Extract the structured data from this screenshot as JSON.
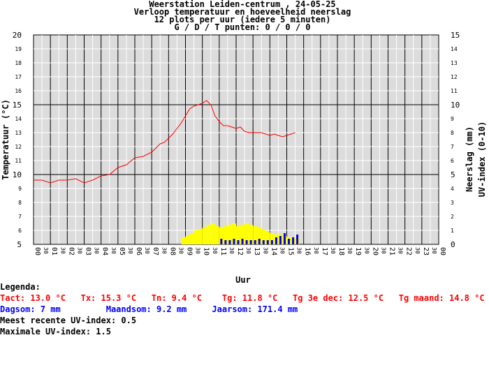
{
  "header": {
    "line1": "Weerstation Leiden-centrum , 24-05-25",
    "line2": "Verloop temperatuur en hoeveelheid neerslag",
    "line3": "12 plots per uur (iedere 5 minuten)",
    "line4": "G / D / T punten: 0 / 0 / 0"
  },
  "axes": {
    "y_left_label": "Temperatuur (°C)",
    "y_right_label1": "Neerslag (mm)",
    "y_right_label2": "UV-index (0-10)",
    "x_label": "Uur",
    "y_left_range": [
      5,
      20
    ],
    "y_right_range": [
      0,
      15
    ],
    "x_range_hours": [
      0,
      24
    ]
  },
  "legend": {
    "title": "Legenda:",
    "line_red": "Tact: 13.0 °C   Tx: 15.3 °C   Tn: 9.4 °C    Tg: 11.8 °C   Tg 3e dec: 12.5 °C   Tg maand: 14.8 °C",
    "line_blue": "Dagsom: 7 mm         Maandsom: 9.2 mm     Jaarsom: 171.4 mm",
    "line_uv_recent": "Meest recente UV-index: 0.5",
    "line_uv_max": "Maximale UV-index: 1.5"
  },
  "colors": {
    "temperature": "#ff0000",
    "rain": "#0000ff",
    "uv": "#ffff00",
    "plot_bg": "#dcdcdc",
    "major_grid": "#000000",
    "minor_grid": "#ffffff"
  },
  "chart_data": {
    "type": "line",
    "x_ticks": [
      "00",
      "30",
      "01",
      "30",
      "02",
      "30",
      "03",
      "30",
      "04",
      "30",
      "05",
      "30",
      "06",
      "30",
      "07",
      "30",
      "08",
      "30",
      "09",
      "30",
      "10",
      "30",
      "11",
      "30",
      "12",
      "30",
      "13",
      "30",
      "14",
      "30",
      "15",
      "30",
      "16",
      "30",
      "17",
      "30",
      "18",
      "30",
      "19",
      "30",
      "20",
      "30",
      "21",
      "30",
      "22",
      "30",
      "23",
      "30",
      "00"
    ],
    "y_left_ticks": [
      5,
      6,
      7,
      8,
      9,
      10,
      11,
      12,
      13,
      14,
      15,
      16,
      17,
      18,
      19,
      20
    ],
    "y_right_ticks": [
      0,
      1,
      2,
      3,
      4,
      5,
      6,
      7,
      8,
      9,
      10,
      11,
      12,
      13,
      14,
      15
    ],
    "temperature": {
      "name": "Temperatuur",
      "x": [
        0,
        0.5,
        1,
        1.5,
        2,
        2.5,
        3,
        3.5,
        4,
        4.5,
        5,
        5.5,
        6,
        6.5,
        7,
        7.25,
        7.5,
        7.75,
        8,
        8.25,
        8.5,
        8.75,
        9,
        9.25,
        9.5,
        9.75,
        10,
        10.25,
        10.5,
        10.75,
        11,
        11.25,
        11.5,
        11.75,
        12,
        12.25,
        12.5,
        12.75,
        13,
        13.25,
        13.5,
        13.75,
        14,
        14.25,
        14.5,
        14.75,
        15,
        15.25,
        15.5
      ],
      "y": [
        9.6,
        9.6,
        9.4,
        9.6,
        9.6,
        9.7,
        9.4,
        9.6,
        9.9,
        10.0,
        10.5,
        10.7,
        11.2,
        11.3,
        11.6,
        11.9,
        12.2,
        12.3,
        12.6,
        12.9,
        13.3,
        13.7,
        14.2,
        14.7,
        14.9,
        15.0,
        15.1,
        15.3,
        15.0,
        14.2,
        13.8,
        13.5,
        13.5,
        13.4,
        13.3,
        13.4,
        13.1,
        13.0,
        13.0,
        13.0,
        13.0,
        12.9,
        12.8,
        12.9,
        12.8,
        12.7,
        12.8,
        12.9,
        13.0
      ]
    },
    "uv": {
      "name": "UV-index",
      "x": [
        8.75,
        9.0,
        9.25,
        9.5,
        9.75,
        10.0,
        10.25,
        10.5,
        10.75,
        11.0,
        11.25,
        11.5,
        11.75,
        12.0,
        12.25,
        12.5,
        12.75,
        13.0,
        13.25,
        13.5,
        13.75,
        14.0,
        14.25,
        14.5,
        14.75,
        15.0,
        15.25,
        15.5
      ],
      "values": [
        0.5,
        0.6,
        0.8,
        1.0,
        1.1,
        1.2,
        1.4,
        1.5,
        1.3,
        1.2,
        1.3,
        1.4,
        1.5,
        1.3,
        1.4,
        1.5,
        1.4,
        1.3,
        1.2,
        1.1,
        0.9,
        0.8,
        0.7,
        0.7,
        0.6,
        0.5,
        0.5,
        0.5
      ]
    },
    "rain": {
      "name": "Neerslag",
      "x": [
        11.0,
        11.25,
        11.5,
        11.75,
        12.0,
        12.25,
        12.5,
        12.75,
        13.0,
        13.25,
        13.5,
        13.75,
        14.0,
        14.25,
        14.5,
        14.75,
        15.0,
        15.25,
        15.5
      ],
      "values": [
        0.4,
        0.3,
        0.3,
        0.4,
        0.3,
        0.4,
        0.3,
        0.3,
        0.3,
        0.4,
        0.3,
        0.3,
        0.3,
        0.5,
        0.6,
        0.8,
        0.4,
        0.5,
        0.7
      ]
    }
  }
}
